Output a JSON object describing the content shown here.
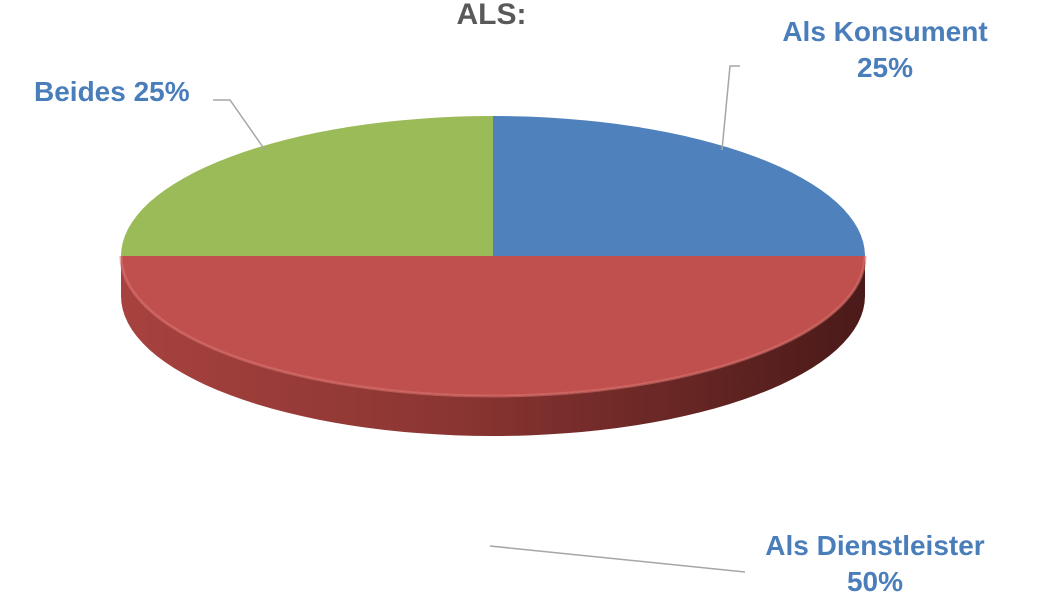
{
  "chart_data": {
    "type": "pie",
    "title": "ALS:",
    "slices": [
      {
        "name": "Als Konsument",
        "value": 25,
        "label_line1": "Als Konsument",
        "label_line2": "25%",
        "color": "#4f81bd"
      },
      {
        "name": "Als Dienstleister",
        "value": 50,
        "label_line1": "Als Dienstleister",
        "label_line2": "50%",
        "color": "#c0504d"
      },
      {
        "name": "Beides",
        "value": 25,
        "label_line1": "Beides 25%",
        "label_line2": "",
        "color": "#9bbb59"
      }
    ],
    "style": "3d"
  }
}
